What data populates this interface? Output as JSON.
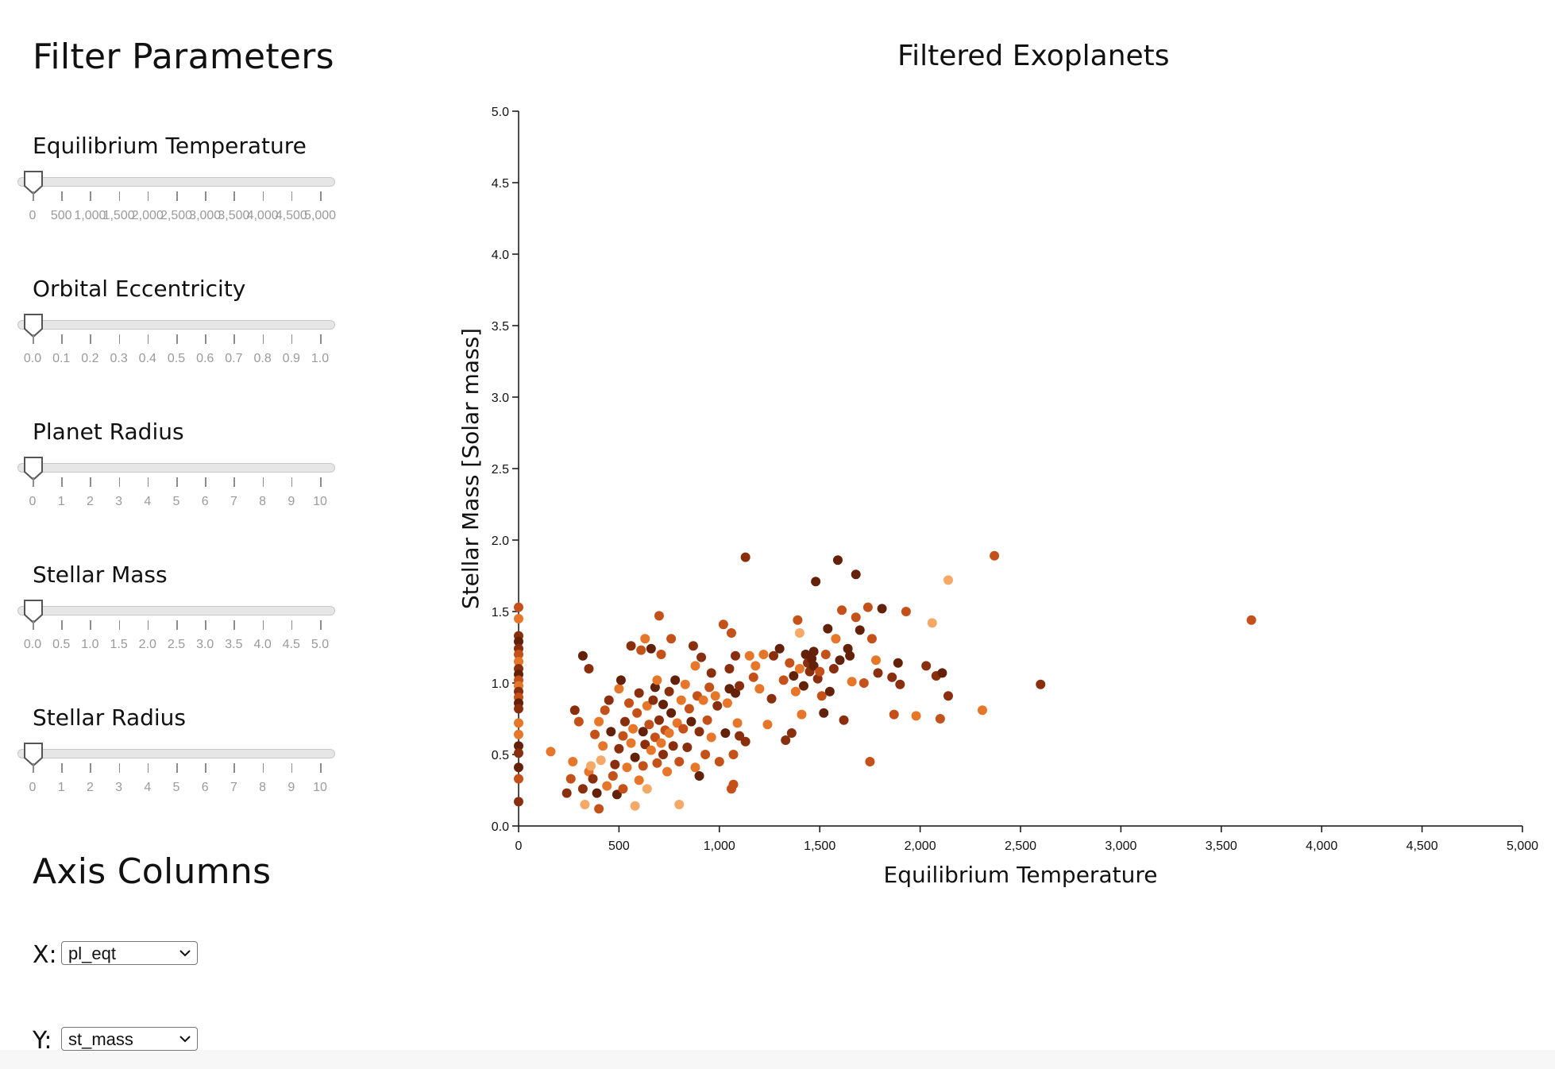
{
  "panel": {
    "filter_title": "Filter Parameters",
    "sliders": [
      {
        "label": "Equilibrium Temperature",
        "value_fraction": 0.0,
        "ticks": [
          "0",
          "500",
          "1,000",
          "1,500",
          "2,000",
          "2,500",
          "3,000",
          "3,500",
          "4,000",
          "4,500",
          "5,000"
        ]
      },
      {
        "label": "Orbital Eccentricity",
        "value_fraction": 0.0,
        "ticks": [
          "0.0",
          "0.1",
          "0.2",
          "0.3",
          "0.4",
          "0.5",
          "0.6",
          "0.7",
          "0.8",
          "0.9",
          "1.0"
        ]
      },
      {
        "label": "Planet Radius",
        "value_fraction": 0.0,
        "ticks": [
          "0",
          "1",
          "2",
          "3",
          "4",
          "5",
          "6",
          "7",
          "8",
          "9",
          "10"
        ]
      },
      {
        "label": "Stellar Mass",
        "value_fraction": 0.0,
        "ticks": [
          "0.0",
          "0.5",
          "1.0",
          "1.5",
          "2.0",
          "2.5",
          "3.0",
          "3.5",
          "4.0",
          "4.5",
          "5.0"
        ]
      },
      {
        "label": "Stellar Radius",
        "value_fraction": 0.0,
        "ticks": [
          "0",
          "1",
          "2",
          "3",
          "4",
          "5",
          "6",
          "7",
          "8",
          "9",
          "10"
        ]
      }
    ],
    "axis_title": "Axis Columns",
    "x_label": "X:",
    "x_value": "pl_eqt",
    "y_label": "Y:",
    "y_value": "st_mass"
  },
  "chart_data": {
    "type": "scatter",
    "title": "Filtered Exoplanets",
    "xlabel": "Equilibrium Temperature",
    "ylabel": "Stellar Mass [Solar mass]",
    "xlim": [
      0,
      5000
    ],
    "ylim": [
      0,
      5
    ],
    "xticks": [
      "0",
      "500",
      "1,000",
      "1,500",
      "2,000",
      "2,500",
      "3,000",
      "3,500",
      "4,000",
      "4,500",
      "5,000"
    ],
    "yticks": [
      "0.0",
      "0.5",
      "1.0",
      "1.5",
      "2.0",
      "2.5",
      "3.0",
      "3.5",
      "4.0",
      "4.5",
      "5.0"
    ],
    "colors": [
      "#fdd9b3",
      "#f6a867",
      "#e6762a",
      "#c4501a",
      "#8a2f0e",
      "#642109"
    ],
    "points": [
      [
        0,
        1.53,
        3
      ],
      [
        0,
        1.45,
        2
      ],
      [
        0,
        1.33,
        4
      ],
      [
        0,
        1.29,
        5
      ],
      [
        0,
        1.24,
        4
      ],
      [
        0,
        1.2,
        3
      ],
      [
        0,
        1.15,
        2
      ],
      [
        0,
        1.1,
        4
      ],
      [
        0,
        1.06,
        5
      ],
      [
        0,
        1.02,
        3
      ],
      [
        0,
        0.98,
        2
      ],
      [
        0,
        0.94,
        4
      ],
      [
        0,
        0.9,
        3
      ],
      [
        0,
        0.86,
        5
      ],
      [
        0,
        0.82,
        4
      ],
      [
        0,
        0.72,
        2
      ],
      [
        0,
        0.56,
        5
      ],
      [
        0,
        0.51,
        4
      ],
      [
        0,
        0.41,
        5
      ],
      [
        0,
        0.33,
        3
      ],
      [
        0,
        0.17,
        4
      ],
      [
        0,
        0.64,
        2
      ],
      [
        160,
        0.52,
        2
      ],
      [
        240,
        0.23,
        4
      ],
      [
        260,
        0.33,
        3
      ],
      [
        270,
        0.45,
        2
      ],
      [
        280,
        0.81,
        4
      ],
      [
        300,
        0.73,
        3
      ],
      [
        320,
        1.19,
        5
      ],
      [
        320,
        0.26,
        4
      ],
      [
        330,
        0.15,
        1
      ],
      [
        350,
        0.38,
        2
      ],
      [
        350,
        1.1,
        4
      ],
      [
        360,
        0.42,
        1
      ],
      [
        370,
        0.33,
        4
      ],
      [
        380,
        0.64,
        3
      ],
      [
        390,
        0.23,
        5
      ],
      [
        400,
        0.12,
        3
      ],
      [
        400,
        0.73,
        2
      ],
      [
        410,
        0.46,
        1
      ],
      [
        420,
        0.56,
        2
      ],
      [
        430,
        0.81,
        3
      ],
      [
        440,
        0.28,
        2
      ],
      [
        450,
        0.88,
        4
      ],
      [
        460,
        0.66,
        5
      ],
      [
        470,
        0.35,
        3
      ],
      [
        480,
        0.43,
        4
      ],
      [
        490,
        0.22,
        5
      ],
      [
        500,
        0.96,
        2
      ],
      [
        500,
        0.54,
        4
      ],
      [
        510,
        1.02,
        5
      ],
      [
        520,
        0.26,
        3
      ],
      [
        520,
        0.63,
        3
      ],
      [
        530,
        0.73,
        4
      ],
      [
        540,
        0.41,
        2
      ],
      [
        550,
        0.86,
        3
      ],
      [
        560,
        1.26,
        4
      ],
      [
        560,
        0.58,
        2
      ],
      [
        570,
        0.68,
        2
      ],
      [
        580,
        0.48,
        5
      ],
      [
        580,
        0.14,
        1
      ],
      [
        590,
        0.79,
        3
      ],
      [
        600,
        0.93,
        4
      ],
      [
        600,
        0.32,
        2
      ],
      [
        610,
        1.23,
        3
      ],
      [
        620,
        0.66,
        5
      ],
      [
        620,
        0.42,
        3
      ],
      [
        630,
        0.57,
        4
      ],
      [
        630,
        1.31,
        2
      ],
      [
        640,
        0.84,
        2
      ],
      [
        640,
        0.26,
        1
      ],
      [
        650,
        0.71,
        3
      ],
      [
        660,
        1.24,
        5
      ],
      [
        660,
        0.53,
        2
      ],
      [
        670,
        0.88,
        4
      ],
      [
        680,
        0.62,
        3
      ],
      [
        680,
        0.97,
        5
      ],
      [
        690,
        0.44,
        3
      ],
      [
        690,
        1.02,
        2
      ],
      [
        700,
        0.74,
        4
      ],
      [
        700,
        1.47,
        3
      ],
      [
        710,
        1.2,
        3
      ],
      [
        710,
        0.58,
        2
      ],
      [
        720,
        0.85,
        5
      ],
      [
        720,
        0.5,
        4
      ],
      [
        730,
        0.67,
        3
      ],
      [
        740,
        0.38,
        2
      ],
      [
        750,
        0.94,
        4
      ],
      [
        750,
        0.65,
        2
      ],
      [
        760,
        1.31,
        3
      ],
      [
        760,
        0.79,
        5
      ],
      [
        770,
        0.56,
        4
      ],
      [
        780,
        1.02,
        5
      ],
      [
        790,
        0.72,
        2
      ],
      [
        800,
        0.15,
        1
      ],
      [
        800,
        0.45,
        3
      ],
      [
        810,
        0.88,
        2
      ],
      [
        820,
        0.68,
        3
      ],
      [
        830,
        0.99,
        2
      ],
      [
        840,
        0.55,
        4
      ],
      [
        850,
        0.82,
        3
      ],
      [
        860,
        0.73,
        5
      ],
      [
        870,
        1.26,
        4
      ],
      [
        880,
        0.41,
        2
      ],
      [
        880,
        1.12,
        2
      ],
      [
        890,
        0.91,
        3
      ],
      [
        900,
        0.66,
        4
      ],
      [
        900,
        0.35,
        5
      ],
      [
        910,
        1.18,
        4
      ],
      [
        920,
        0.88,
        2
      ],
      [
        930,
        0.5,
        3
      ],
      [
        940,
        0.74,
        3
      ],
      [
        950,
        0.97,
        3
      ],
      [
        960,
        1.07,
        4
      ],
      [
        960,
        0.62,
        2
      ],
      [
        980,
        0.91,
        2
      ],
      [
        990,
        0.84,
        4
      ],
      [
        1000,
        0.45,
        3
      ],
      [
        1020,
        1.41,
        3
      ],
      [
        1030,
        0.65,
        5
      ],
      [
        1040,
        0.86,
        2
      ],
      [
        1050,
        1.1,
        4
      ],
      [
        1050,
        0.96,
        5
      ],
      [
        1060,
        1.35,
        3
      ],
      [
        1060,
        0.26,
        3
      ],
      [
        1070,
        0.5,
        3
      ],
      [
        1070,
        0.29,
        3
      ],
      [
        1080,
        1.19,
        4
      ],
      [
        1080,
        0.93,
        5
      ],
      [
        1090,
        0.72,
        2
      ],
      [
        1100,
        0.63,
        4
      ],
      [
        1100,
        0.98,
        4
      ],
      [
        1130,
        1.88,
        4
      ],
      [
        1130,
        0.59,
        4
      ],
      [
        1150,
        1.19,
        2
      ],
      [
        1170,
        1.04,
        3
      ],
      [
        1180,
        1.12,
        2
      ],
      [
        1200,
        0.96,
        2
      ],
      [
        1220,
        1.2,
        2
      ],
      [
        1240,
        0.71,
        2
      ],
      [
        1260,
        0.89,
        4
      ],
      [
        1270,
        1.19,
        4
      ],
      [
        1300,
        1.24,
        5
      ],
      [
        1320,
        1.02,
        3
      ],
      [
        1330,
        0.6,
        4
      ],
      [
        1350,
        1.14,
        3
      ],
      [
        1360,
        0.65,
        4
      ],
      [
        1370,
        1.05,
        5
      ],
      [
        1380,
        0.94,
        2
      ],
      [
        1390,
        1.44,
        3
      ],
      [
        1400,
        1.35,
        1
      ],
      [
        1400,
        1.1,
        2
      ],
      [
        1410,
        0.78,
        2
      ],
      [
        1420,
        0.98,
        5
      ],
      [
        1430,
        1.2,
        5
      ],
      [
        1440,
        1.14,
        4
      ],
      [
        1450,
        1.08,
        4
      ],
      [
        1460,
        1.17,
        5
      ],
      [
        1470,
        1.22,
        5
      ],
      [
        1470,
        1.12,
        5
      ],
      [
        1480,
        1.71,
        5
      ],
      [
        1490,
        1.03,
        4
      ],
      [
        1500,
        1.08,
        3
      ],
      [
        1510,
        0.91,
        3
      ],
      [
        1520,
        0.79,
        5
      ],
      [
        1530,
        1.2,
        3
      ],
      [
        1540,
        1.38,
        5
      ],
      [
        1550,
        0.94,
        5
      ],
      [
        1570,
        1.1,
        4
      ],
      [
        1580,
        1.31,
        2
      ],
      [
        1590,
        1.86,
        5
      ],
      [
        1600,
        1.16,
        5
      ],
      [
        1610,
        1.51,
        3
      ],
      [
        1620,
        0.74,
        4
      ],
      [
        1640,
        1.24,
        5
      ],
      [
        1650,
        1.19,
        5
      ],
      [
        1660,
        1.01,
        2
      ],
      [
        1680,
        1.46,
        3
      ],
      [
        1680,
        1.76,
        5
      ],
      [
        1700,
        1.37,
        5
      ],
      [
        1720,
        1.0,
        3
      ],
      [
        1740,
        1.53,
        3
      ],
      [
        1750,
        0.45,
        3
      ],
      [
        1760,
        1.31,
        3
      ],
      [
        1780,
        1.16,
        2
      ],
      [
        1790,
        1.07,
        4
      ],
      [
        1810,
        1.52,
        5
      ],
      [
        1860,
        1.04,
        4
      ],
      [
        1870,
        0.78,
        3
      ],
      [
        1890,
        1.14,
        5
      ],
      [
        1900,
        0.99,
        4
      ],
      [
        1930,
        1.5,
        3
      ],
      [
        1980,
        0.77,
        2
      ],
      [
        2030,
        1.12,
        4
      ],
      [
        2060,
        1.42,
        1
      ],
      [
        2080,
        1.05,
        4
      ],
      [
        2100,
        0.75,
        3
      ],
      [
        2110,
        1.07,
        5
      ],
      [
        2140,
        1.72,
        1
      ],
      [
        2140,
        0.91,
        4
      ],
      [
        2310,
        0.81,
        2
      ],
      [
        2370,
        1.89,
        3
      ],
      [
        2600,
        0.99,
        4
      ],
      [
        3650,
        1.44,
        3
      ]
    ]
  }
}
